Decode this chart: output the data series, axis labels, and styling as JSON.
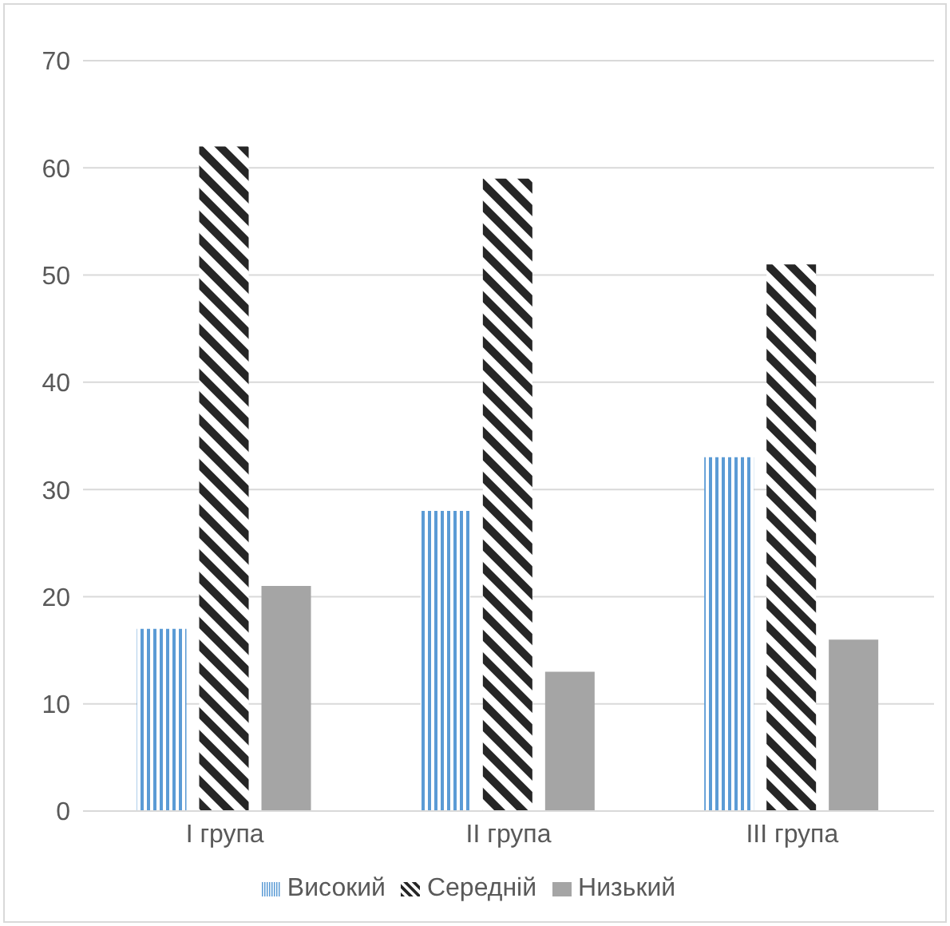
{
  "chart_data": {
    "type": "bar",
    "categories": [
      "I група",
      "II група",
      "III група"
    ],
    "series": [
      {
        "name": "Високий",
        "color": "#5b9bd5",
        "values": [
          17,
          28,
          33
        ]
      },
      {
        "name": "Середній",
        "color": "#262626",
        "values": [
          62,
          59,
          51
        ]
      },
      {
        "name": "Низький",
        "color": "#a5a5a5",
        "values": [
          21,
          13,
          16
        ]
      }
    ],
    "ylim": [
      0,
      70
    ],
    "yticks": [
      0,
      10,
      20,
      30,
      40,
      50,
      60,
      70
    ],
    "grid": "y",
    "legend": "bottom"
  }
}
